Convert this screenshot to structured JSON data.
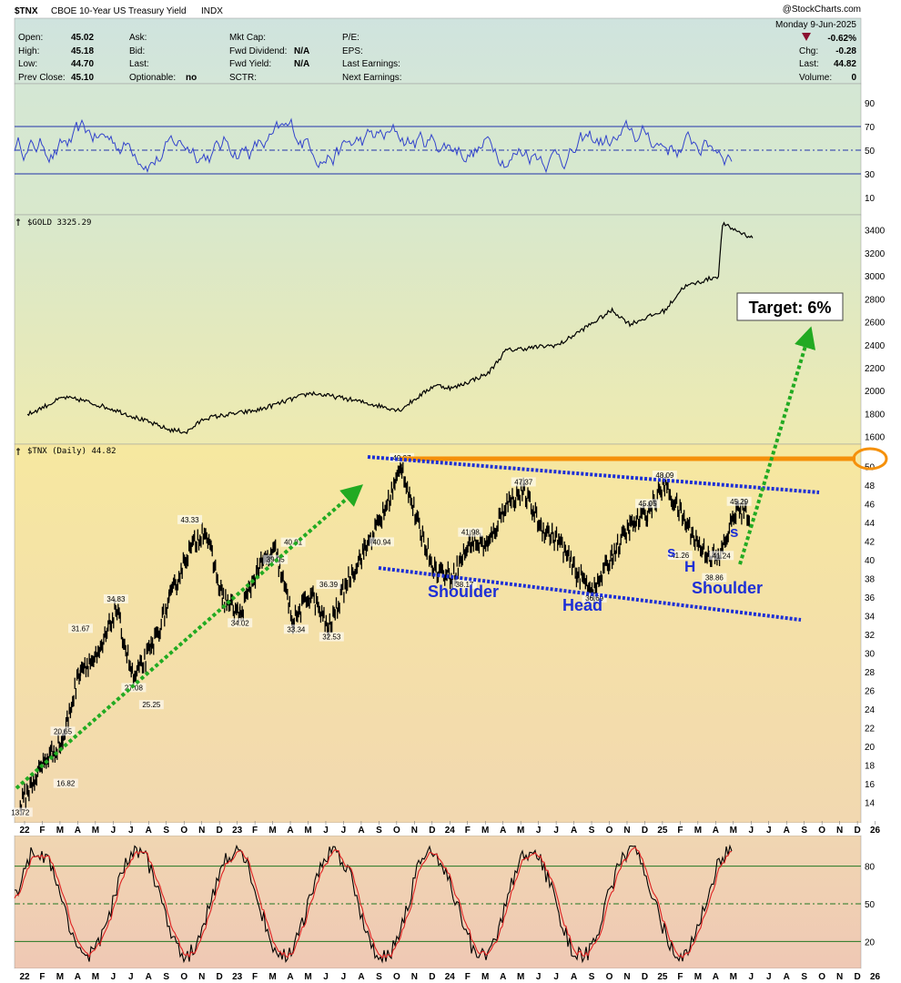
{
  "header": {
    "symbol": "$TNX",
    "name": "CBOE 10-Year US Treasury Yield",
    "exchange": "INDX",
    "watermark": "@StockCharts.com",
    "date": "Monday  9-Jun-2025",
    "pct_change": "-0.62%",
    "quote": {
      "open_label": "Open:",
      "open": "45.02",
      "high_label": "High:",
      "high": "45.18",
      "low_label": "Low:",
      "low": "44.70",
      "prev_label": "Prev Close:",
      "prev": "45.10",
      "ask_label": "Ask:",
      "bid_label": "Bid:",
      "last_label": "Last:",
      "optionable_label": "Optionable:",
      "optionable": "no",
      "mktcap_label": "Mkt Cap:",
      "fwddiv_label": "Fwd Dividend:",
      "fwddiv": "N/A",
      "fwdyield_label": "Fwd Yield:",
      "fwdyield": "N/A",
      "sctr_label": "SCTR:",
      "pe_label": "P/E:",
      "eps_label": "EPS:",
      "lastearn_label": "Last Earnings:",
      "nextearn_label": "Next Earnings:",
      "chg_label": "Chg:",
      "chg": "-0.28",
      "last2_label": "Last:",
      "last2": "44.82",
      "volume_label": "Volume:",
      "volume": "0"
    }
  },
  "colors": {
    "price_line": "#000000",
    "rsi_line": "#3344cc",
    "stoch_fast": "#000000",
    "stoch_slow": "#dd2222",
    "arrow": "#22aa22",
    "channel": "#1d2fd6",
    "resistance": "#f5900a",
    "annotation": "#1d2fd6"
  },
  "annotations": {
    "target": "Target: 6%",
    "shoulder_left": "Shoulder",
    "head": "Head",
    "shoulder_right": "Shoulder",
    "small_s1": "s",
    "small_h": "H",
    "small_s2": "s"
  },
  "chart_data": [
    {
      "type": "line",
      "panel": "rsi",
      "ylim": [
        0,
        100
      ],
      "y_ticks": [
        "10",
        "30",
        "50",
        "70",
        "90"
      ],
      "levels": [
        30,
        50,
        70
      ],
      "approx": true
    },
    {
      "type": "line",
      "panel": "gold",
      "title": "$GOLD 3325.29",
      "ylim": [
        1550,
        3500
      ],
      "y_ticks": [
        "1600",
        "1800",
        "2000",
        "2200",
        "2400",
        "2600",
        "2800",
        "3000",
        "3200",
        "3400"
      ],
      "x": [
        "22-Jan",
        "22-Mar",
        "22-Apr",
        "22-Jun",
        "22-Sep",
        "22-Oct",
        "22-Nov",
        "23-Feb",
        "23-May",
        "23-Jul",
        "23-Oct",
        "23-Dec",
        "24-Jan",
        "24-Mar",
        "24-Apr",
        "24-Jul",
        "24-Oct",
        "24-Nov",
        "25-Jan",
        "25-Feb",
        "25-Apr",
        "25-Apr-22",
        "25-Jun"
      ],
      "values": [
        1790,
        1940,
        1920,
        1830,
        1660,
        1640,
        1760,
        1830,
        1980,
        1930,
        1830,
        2050,
        2020,
        2150,
        2350,
        2400,
        2700,
        2580,
        2700,
        2900,
        3000,
        3450,
        3325
      ]
    },
    {
      "type": "line",
      "panel": "price",
      "title": "$TNX (Daily) 44.82",
      "ylim": [
        12,
        52
      ],
      "y_ticks": [
        "14",
        "16",
        "18",
        "20",
        "22",
        "24",
        "26",
        "28",
        "30",
        "32",
        "34",
        "36",
        "38",
        "40",
        "42",
        "44",
        "46",
        "48",
        "50"
      ],
      "x_ticks": [
        "22",
        "F",
        "M",
        "A",
        "M",
        "J",
        "J",
        "A",
        "S",
        "O",
        "N",
        "D",
        "23",
        "F",
        "M",
        "A",
        "M",
        "J",
        "J",
        "A",
        "S",
        "O",
        "N",
        "D",
        "24",
        "F",
        "M",
        "A",
        "M",
        "J",
        "J",
        "A",
        "S",
        "O",
        "N",
        "D",
        "25",
        "F",
        "M",
        "A",
        "M",
        "J",
        "J",
        "A",
        "S",
        "O",
        "N",
        "D",
        "26"
      ],
      "x": [
        "22-Jan-03",
        "22-Feb",
        "22-Mar",
        "22-Apr",
        "22-May",
        "22-Jun",
        "22-Jul",
        "22-Aug",
        "22-Sep",
        "22-Oct",
        "22-Nov",
        "22-Dec",
        "23-Jan",
        "23-Feb",
        "23-Mar",
        "23-Apr",
        "23-May",
        "23-Jun",
        "23-Jul",
        "23-Aug",
        "23-Sep",
        "23-Oct-19",
        "23-Nov",
        "23-Dec",
        "24-Jan",
        "24-Feb",
        "24-Mar",
        "24-Apr",
        "24-May",
        "24-Jun",
        "24-Jul",
        "24-Aug",
        "24-Sep",
        "24-Oct",
        "24-Nov",
        "24-Dec",
        "25-Jan-14",
        "25-Feb",
        "25-Mar",
        "25-Apr",
        "25-May",
        "25-Jun-09"
      ],
      "values": [
        13.72,
        18.5,
        20.65,
        28.5,
        29.5,
        34.83,
        27.08,
        30.5,
        35.5,
        40.5,
        43.33,
        36,
        34.02,
        39.05,
        40.91,
        33.34,
        36.39,
        32.53,
        37.5,
        40.94,
        44.5,
        49.97,
        44,
        39,
        38.17,
        41.98,
        41.5,
        46,
        47.37,
        43.5,
        42,
        38.5,
        36.69,
        40.5,
        43.5,
        45.05,
        48.09,
        44.5,
        41.26,
        40,
        45.29,
        44.82
      ],
      "peak_labels": [
        "13.72",
        "20.65",
        "16.82",
        "31.67",
        "34.83",
        "27.08",
        "25.25",
        "43.33",
        "39.05",
        "34.02",
        "40.91",
        "33.34",
        "36.39",
        "32.53",
        "40.94",
        "49.97",
        "41.98",
        "38.17",
        "47.37",
        "36.69",
        "45.05",
        "48.09",
        "41.26",
        "41.24",
        "38.86",
        "45.29"
      ],
      "legend": "top-left"
    },
    {
      "type": "line",
      "panel": "stochastic",
      "ylim": [
        0,
        100
      ],
      "y_ticks": [
        "20",
        "50",
        "80"
      ],
      "levels": [
        20,
        50,
        80
      ],
      "approx": true
    }
  ]
}
